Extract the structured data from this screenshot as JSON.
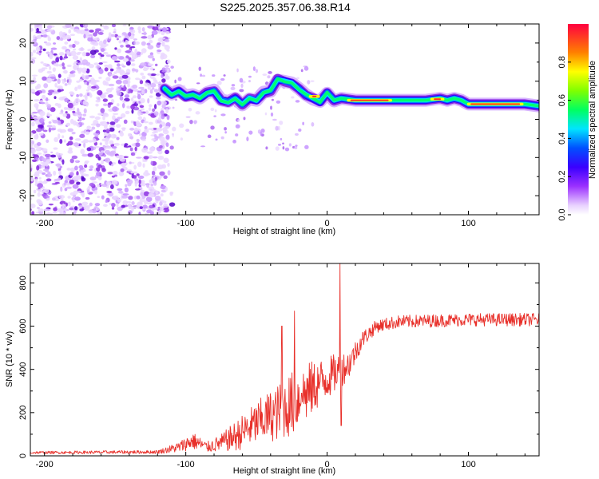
{
  "title": "S225.2025.357.06.38.R14",
  "chart_data": [
    {
      "type": "heatmap",
      "xlabel": "Height of straight line (km)",
      "ylabel": "Frequency (Hz)",
      "xlim": [
        -210,
        150
      ],
      "ylim": [
        -25,
        25
      ],
      "xticks": [
        -200,
        -100,
        0,
        100
      ],
      "yticks": [
        -20,
        -10,
        0,
        10,
        20
      ],
      "colorbar": {
        "label": "Normalized spectral amplitude",
        "range": [
          0,
          1
        ],
        "ticks": [
          "0.0",
          "0.2",
          "0.4",
          "0.6",
          "0.8"
        ],
        "colormap": "rainbow"
      },
      "tone_track": [
        {
          "x": -115,
          "f": 8.0
        },
        {
          "x": -110,
          "f": 6.5
        },
        {
          "x": -105,
          "f": 7.5
        },
        {
          "x": -100,
          "f": 6.0
        },
        {
          "x": -95,
          "f": 6.5
        },
        {
          "x": -90,
          "f": 5.5
        },
        {
          "x": -85,
          "f": 7.0
        },
        {
          "x": -80,
          "f": 7.5
        },
        {
          "x": -75,
          "f": 5.0
        },
        {
          "x": -70,
          "f": 4.5
        },
        {
          "x": -65,
          "f": 5.5
        },
        {
          "x": -60,
          "f": 4.0
        },
        {
          "x": -55,
          "f": 5.5
        },
        {
          "x": -50,
          "f": 5.0
        },
        {
          "x": -45,
          "f": 7.0
        },
        {
          "x": -40,
          "f": 7.5
        },
        {
          "x": -35,
          "f": 10.5
        },
        {
          "x": -30,
          "f": 10.0
        },
        {
          "x": -25,
          "f": 9.5
        },
        {
          "x": -20,
          "f": 8.0
        },
        {
          "x": -15,
          "f": 6.5
        },
        {
          "x": -10,
          "f": 5.5
        },
        {
          "x": -5,
          "f": 4.5
        },
        {
          "x": 0,
          "f": 7.0
        },
        {
          "x": 5,
          "f": 5.0
        },
        {
          "x": 10,
          "f": 5.5
        },
        {
          "x": 20,
          "f": 5.0
        },
        {
          "x": 30,
          "f": 5.0
        },
        {
          "x": 40,
          "f": 5.0
        },
        {
          "x": 50,
          "f": 5.0
        },
        {
          "x": 60,
          "f": 5.0
        },
        {
          "x": 70,
          "f": 5.0
        },
        {
          "x": 80,
          "f": 5.5
        },
        {
          "x": 85,
          "f": 5.0
        },
        {
          "x": 90,
          "f": 5.5
        },
        {
          "x": 95,
          "f": 5.0
        },
        {
          "x": 100,
          "f": 4.0
        },
        {
          "x": 110,
          "f": 4.0
        },
        {
          "x": 120,
          "f": 4.0
        },
        {
          "x": 130,
          "f": 4.0
        },
        {
          "x": 140,
          "f": 4.0
        },
        {
          "x": 150,
          "f": 3.5
        }
      ],
      "noise_region": {
        "x_from": -210,
        "x_to": -112,
        "f_from": -25,
        "f_to": 25
      }
    },
    {
      "type": "line",
      "xlabel": "Height of straight line (km)",
      "ylabel": "SNR (10 * v/v)",
      "xlim": [
        -210,
        150
      ],
      "ylim": [
        0,
        890
      ],
      "xticks": [
        -200,
        -100,
        0,
        100
      ],
      "yticks": [
        0,
        200,
        400,
        600,
        800
      ],
      "series": [
        {
          "name": "SNR",
          "color": "#e8302a",
          "envelope": [
            {
              "x": -210,
              "mean": 15,
              "spread": 6
            },
            {
              "x": -120,
              "mean": 18,
              "spread": 8
            },
            {
              "x": -105,
              "mean": 40,
              "spread": 25
            },
            {
              "x": -95,
              "mean": 70,
              "spread": 40
            },
            {
              "x": -85,
              "mean": 40,
              "spread": 25
            },
            {
              "x": -75,
              "mean": 60,
              "spread": 40
            },
            {
              "x": -65,
              "mean": 90,
              "spread": 70
            },
            {
              "x": -55,
              "mean": 130,
              "spread": 90
            },
            {
              "x": -45,
              "mean": 170,
              "spread": 110
            },
            {
              "x": -35,
              "mean": 200,
              "spread": 130
            },
            {
              "x": -25,
              "mean": 240,
              "spread": 150
            },
            {
              "x": -15,
              "mean": 290,
              "spread": 140
            },
            {
              "x": -5,
              "mean": 340,
              "spread": 110
            },
            {
              "x": 5,
              "mean": 380,
              "spread": 90
            },
            {
              "x": 15,
              "mean": 420,
              "spread": 70
            },
            {
              "x": 25,
              "mean": 540,
              "spread": 40
            },
            {
              "x": 35,
              "mean": 600,
              "spread": 30
            },
            {
              "x": 50,
              "mean": 620,
              "spread": 30
            },
            {
              "x": 100,
              "mean": 630,
              "spread": 30
            },
            {
              "x": 150,
              "mean": 630,
              "spread": 30
            }
          ],
          "spikes": [
            {
              "x": -32,
              "y": 600
            },
            {
              "x": -23,
              "y": 670
            },
            {
              "x": -18,
              "y": 290
            },
            {
              "x": 9,
              "y": 890
            },
            {
              "x": 10,
              "y": 140
            }
          ]
        }
      ]
    }
  ]
}
